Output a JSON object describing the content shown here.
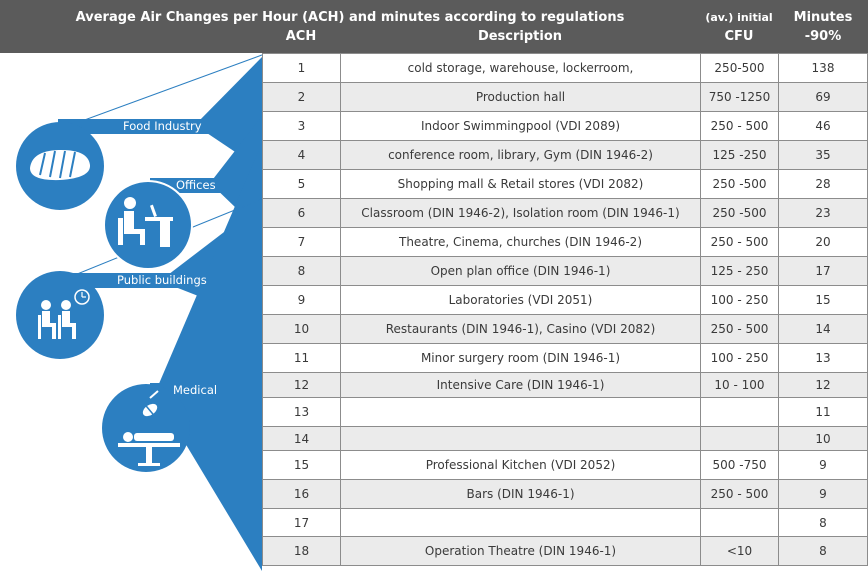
{
  "header": {
    "title": "Average Air Changes per Hour  (ACH) and minutes according to regulations",
    "col_ach": "ACH",
    "col_desc": "Description",
    "col_cfu_line1": "(av.) initial",
    "col_cfu_line2": "CFU",
    "col_min_line1": "Minutes",
    "col_min_line2": "-90%"
  },
  "categories": [
    {
      "label": "Food Industry",
      "icon": "bread-icon"
    },
    {
      "label": "Offices",
      "icon": "office-worker-desk-icon"
    },
    {
      "label": "Public buildings",
      "icon": "waiting-room-clock-icon"
    },
    {
      "label": "Medical",
      "icon": "operating-table-lamp-icon"
    }
  ],
  "colors": {
    "accent_blue": "#2c7fc1",
    "header_bg": "#5b5b5b",
    "row_alt": "#ebebeb",
    "row_white": "#ffffff"
  },
  "rows": [
    {
      "ach": "1",
      "desc": "cold storage, warehouse, lockerroom,",
      "cfu": "250-500",
      "min": "138"
    },
    {
      "ach": "2",
      "desc": "Production hall",
      "cfu": "750 -1250",
      "min": "69"
    },
    {
      "ach": "3",
      "desc": "Indoor Swimmingpool (VDI 2089)",
      "cfu": "250 - 500",
      "min": "46"
    },
    {
      "ach": "4",
      "desc": "conference room, library, Gym (DIN 1946-2)",
      "cfu": "125 -250",
      "min": "35"
    },
    {
      "ach": "5",
      "desc": "Shopping mall & Retail stores (VDI 2082)",
      "cfu": "250 -500",
      "min": "28"
    },
    {
      "ach": "6",
      "desc": "Classroom (DIN 1946-2), Isolation room (DIN 1946-1)",
      "cfu": "250 -500",
      "min": "23"
    },
    {
      "ach": "7",
      "desc": "Theatre, Cinema, churches (DIN 1946-2)",
      "cfu": "250 - 500",
      "min": "20"
    },
    {
      "ach": "8",
      "desc": "Open plan office (DIN 1946-1)",
      "cfu": "125 - 250",
      "min": "17"
    },
    {
      "ach": "9",
      "desc": "Laboratories (VDI 2051)",
      "cfu": "100 - 250",
      "min": "15"
    },
    {
      "ach": "10",
      "desc": "Restaurants (DIN 1946-1), Casino (VDI 2082)",
      "cfu": "250 - 500",
      "min": "14"
    },
    {
      "ach": "11",
      "desc": "Minor surgery room (DIN 1946-1)",
      "cfu": "100 - 250",
      "min": "13"
    },
    {
      "ach": "12",
      "desc": "Intensive Care (DIN 1946-1)",
      "cfu": "10 - 100",
      "min": "12"
    },
    {
      "ach": "13",
      "desc": "",
      "cfu": "",
      "min": "11"
    },
    {
      "ach": "14",
      "desc": "",
      "cfu": "",
      "min": "10"
    },
    {
      "ach": "15",
      "desc": "Professional Kitchen (VDI 2052)",
      "cfu": "500 -750",
      "min": "9"
    },
    {
      "ach": "16",
      "desc": "Bars (DIN 1946-1)",
      "cfu": "250 - 500",
      "min": "9"
    },
    {
      "ach": "17",
      "desc": "",
      "cfu": "",
      "min": "8"
    },
    {
      "ach": "18",
      "desc": "Operation Theatre (DIN 1946-1)",
      "cfu": "<10",
      "min": "8"
    }
  ]
}
